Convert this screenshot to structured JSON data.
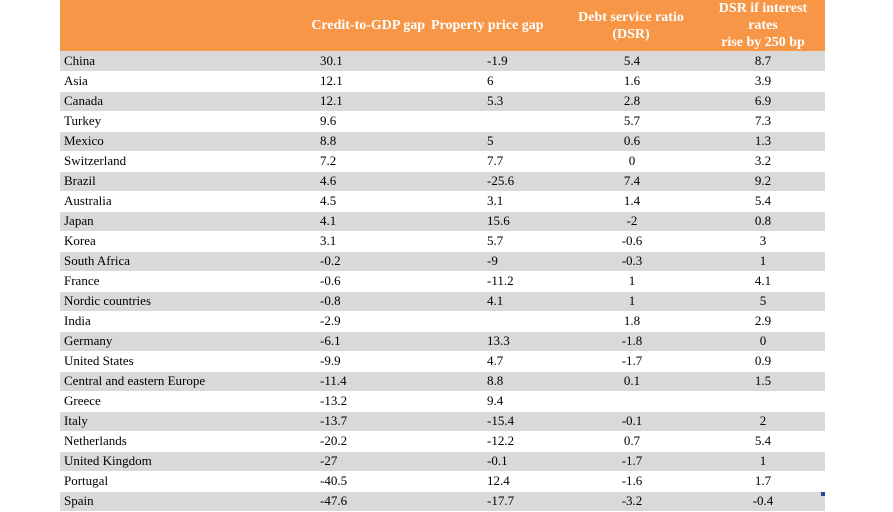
{
  "headers": {
    "country": "",
    "credit": "Credit-to-GDP gap",
    "property": "Property price gap",
    "dsr_line1": "Debt service ratio",
    "dsr_line2": "(DSR)",
    "dsr250_line1": "DSR if interest rates",
    "dsr250_line2": "rise by 250 bp"
  },
  "rows": [
    {
      "country": "China",
      "credit": "30.1",
      "property": "-1.9",
      "dsr": "5.4",
      "dsr250": "8.7"
    },
    {
      "country": "Asia",
      "credit": "12.1",
      "property": "6",
      "dsr": "1.6",
      "dsr250": "3.9"
    },
    {
      "country": "Canada",
      "credit": "12.1",
      "property": "5.3",
      "dsr": "2.8",
      "dsr250": "6.9"
    },
    {
      "country": "Turkey",
      "credit": "9.6",
      "property": "",
      "dsr": "5.7",
      "dsr250": "7.3"
    },
    {
      "country": "Mexico",
      "credit": "8.8",
      "property": "5",
      "dsr": "0.6",
      "dsr250": "1.3"
    },
    {
      "country": "Switzerland",
      "credit": "7.2",
      "property": "7.7",
      "dsr": "0",
      "dsr250": "3.2"
    },
    {
      "country": "Brazil",
      "credit": "4.6",
      "property": "-25.6",
      "dsr": "7.4",
      "dsr250": "9.2"
    },
    {
      "country": "Australia",
      "credit": "4.5",
      "property": "3.1",
      "dsr": "1.4",
      "dsr250": "5.4"
    },
    {
      "country": "Japan",
      "credit": "4.1",
      "property": "15.6",
      "dsr": "-2",
      "dsr250": "0.8"
    },
    {
      "country": "Korea",
      "credit": "3.1",
      "property": "5.7",
      "dsr": "-0.6",
      "dsr250": "3"
    },
    {
      "country": "South Africa",
      "credit": "-0.2",
      "property": "-9",
      "dsr": "-0.3",
      "dsr250": "1"
    },
    {
      "country": "France",
      "credit": "-0.6",
      "property": "-11.2",
      "dsr": "1",
      "dsr250": "4.1"
    },
    {
      "country": "Nordic countries",
      "credit": "-0.8",
      "property": "4.1",
      "dsr": "1",
      "dsr250": "5"
    },
    {
      "country": "India",
      "credit": "-2.9",
      "property": "",
      "dsr": "1.8",
      "dsr250": "2.9"
    },
    {
      "country": "Germany",
      "credit": "-6.1",
      "property": "13.3",
      "dsr": "-1.8",
      "dsr250": "0"
    },
    {
      "country": "United States",
      "credit": "-9.9",
      "property": "4.7",
      "dsr": "-1.7",
      "dsr250": "0.9"
    },
    {
      "country": "Central and eastern Europe",
      "credit": "-11.4",
      "property": "8.8",
      "dsr": "0.1",
      "dsr250": "1.5"
    },
    {
      "country": "Greece",
      "credit": "-13.2",
      "property": "9.4",
      "dsr": "",
      "dsr250": ""
    },
    {
      "country": "Italy",
      "credit": "-13.7",
      "property": "-15.4",
      "dsr": "-0.1",
      "dsr250": "2"
    },
    {
      "country": "Netherlands",
      "credit": "-20.2",
      "property": "-12.2",
      "dsr": "0.7",
      "dsr250": "5.4"
    },
    {
      "country": "United Kingdom",
      "credit": "-27",
      "property": "-0.1",
      "dsr": "-1.7",
      "dsr250": "1"
    },
    {
      "country": "Portugal",
      "credit": "-40.5",
      "property": "12.4",
      "dsr": "-1.6",
      "dsr250": "1.7"
    },
    {
      "country": "Spain",
      "credit": "-47.6",
      "property": "-17.7",
      "dsr": "-3.2",
      "dsr250": "-0.4"
    }
  ],
  "colors": {
    "header_bg": "#f79646",
    "header_text": "#ffffff",
    "band_shaded": "#d9d9d9",
    "band_plain": "#ffffff"
  }
}
